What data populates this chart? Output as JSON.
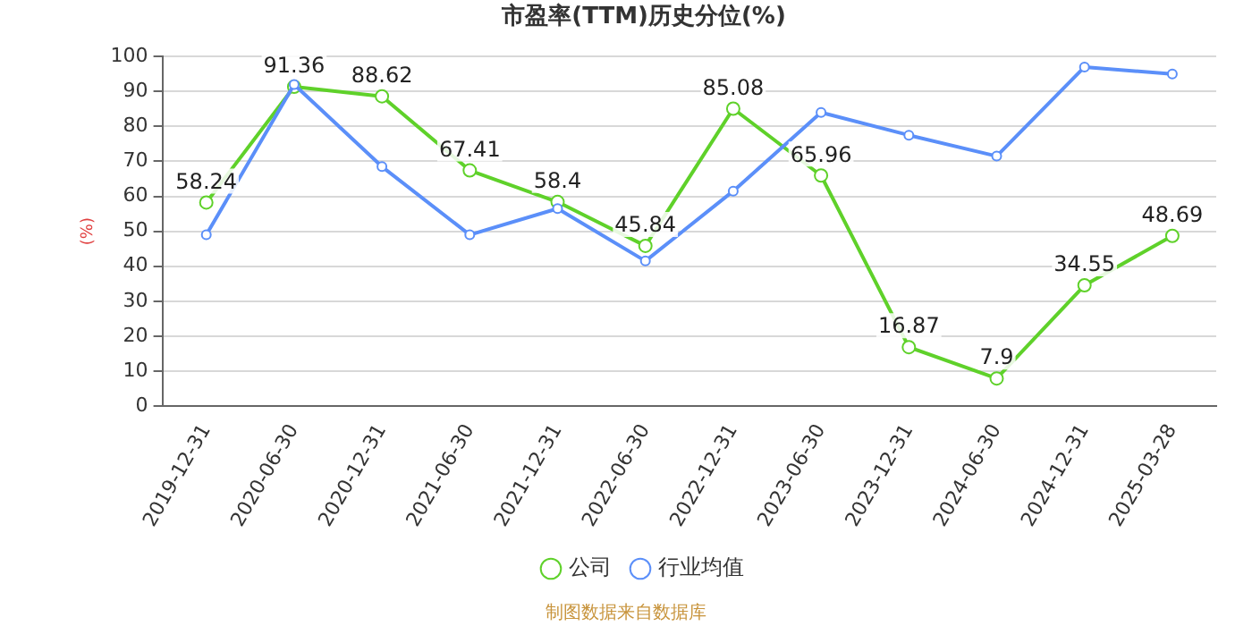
{
  "chart_data": {
    "type": "line",
    "title": "市盈率(TTM)历史分位(%)",
    "ylabel": "(%)",
    "categories": [
      "2019-12-31",
      "2020-06-30",
      "2020-12-31",
      "2021-06-30",
      "2021-12-31",
      "2022-06-30",
      "2022-12-31",
      "2023-06-30",
      "2023-12-31",
      "2024-06-30",
      "2024-12-31",
      "2025-03-28"
    ],
    "series": [
      {
        "name": "公司",
        "color": "#5fd12a",
        "values": [
          58.24,
          91.36,
          88.62,
          67.41,
          58.4,
          45.84,
          85.08,
          65.96,
          16.87,
          7.9,
          34.55,
          48.69
        ],
        "value_labels": [
          "58.24",
          "91.36",
          "88.62",
          "67.41",
          "58.4",
          "45.84",
          "85.08",
          "65.96",
          "16.87",
          "7.9",
          "34.55",
          "48.69"
        ]
      },
      {
        "name": "行业均值",
        "color": "#5b8ff9",
        "values": [
          49,
          92,
          68.5,
          49,
          56.5,
          41.5,
          61.5,
          84,
          77.5,
          71.5,
          97,
          95
        ]
      }
    ],
    "ylim": [
      0,
      100
    ],
    "yticks": [
      0,
      10,
      20,
      30,
      40,
      50,
      60,
      70,
      80,
      90,
      100
    ],
    "grid": "y",
    "legend": "bottom",
    "marker": "circle",
    "line_style": "solid",
    "annotations": [
      "制图数据来自数据库"
    ]
  }
}
